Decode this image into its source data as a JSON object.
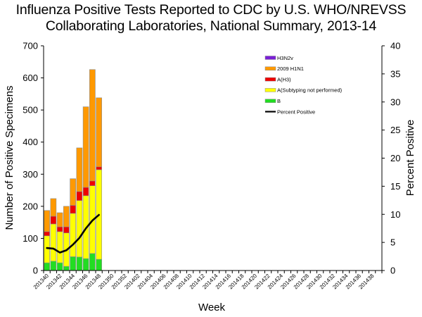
{
  "chart_data": {
    "type": "bar",
    "stacked": true,
    "title_lines": [
      "Influenza Positive Tests Reported to CDC by U.S. WHO/NREVSS",
      "Collaborating Laboratories, National Summary, 2013-14"
    ],
    "xlabel": "Week",
    "ylabel": "Number of Positive Specimens",
    "y2label": "Percent Positive",
    "ylim": [
      0,
      700
    ],
    "yticks": [
      0,
      100,
      200,
      300,
      400,
      500,
      600,
      700
    ],
    "y2lim": [
      0,
      40
    ],
    "y2ticks": [
      0,
      5,
      10,
      15,
      20,
      25,
      30,
      35,
      40
    ],
    "grid": false,
    "legend_position": "top-right",
    "categories": [
      "201340",
      "201341",
      "201342",
      "201343",
      "201344",
      "201345",
      "201346",
      "201347",
      "201348",
      "201349",
      "201350",
      "201351",
      "201352",
      "201401",
      "201402",
      "201403",
      "201404",
      "201405",
      "201406",
      "201407",
      "201408",
      "201409",
      "201410",
      "201411",
      "201412",
      "201413",
      "201414",
      "201415",
      "201416",
      "201417",
      "201418",
      "201419",
      "201420",
      "201421",
      "201422",
      "201423",
      "201424",
      "201425",
      "201426",
      "201427",
      "201428",
      "201429",
      "201430",
      "201431",
      "201432",
      "201433",
      "201434",
      "201435",
      "201436",
      "201437",
      "201438",
      "201439"
    ],
    "x_tick_labels_every": 2,
    "series": [
      {
        "name": "B",
        "color": "#22dd22",
        "values": [
          24,
          29,
          24,
          13,
          43,
          42,
          37,
          53,
          35
        ]
      },
      {
        "name": "A(Subtyping not performed)",
        "color": "#ffff00",
        "values": [
          84,
          116,
          97,
          104,
          135,
          176,
          196,
          211,
          279
        ]
      },
      {
        "name": "A(H3)",
        "color": "#ee0000",
        "values": [
          13,
          24,
          15,
          19,
          25,
          28,
          26,
          15,
          9
        ]
      },
      {
        "name": "2009 H1N1",
        "color": "#ff9900",
        "values": [
          66,
          55,
          44,
          64,
          83,
          136,
          251,
          347,
          215
        ]
      },
      {
        "name": "H3N2v",
        "color": "#7a1fd6",
        "values": [
          0,
          0,
          0,
          0,
          0,
          0,
          0,
          0,
          0
        ]
      }
    ],
    "line_series": {
      "name": "Percent Positive",
      "color": "#000000",
      "axis": "right",
      "values": [
        4.0,
        3.9,
        3.2,
        3.6,
        4.6,
        5.8,
        7.5,
        8.9,
        9.9
      ]
    },
    "legend": [
      {
        "label": "H3N2v",
        "color": "#7a1fd6",
        "kind": "bar"
      },
      {
        "label": "2009 H1N1",
        "color": "#ff9900",
        "kind": "bar"
      },
      {
        "label": "A(H3)",
        "color": "#ee0000",
        "kind": "bar"
      },
      {
        "label": "A(Subtyping not performed)",
        "color": "#ffff00",
        "kind": "bar"
      },
      {
        "label": "B",
        "color": "#22dd22",
        "kind": "bar"
      },
      {
        "label": "Percent Positive",
        "color": "#000000",
        "kind": "line"
      }
    ]
  }
}
